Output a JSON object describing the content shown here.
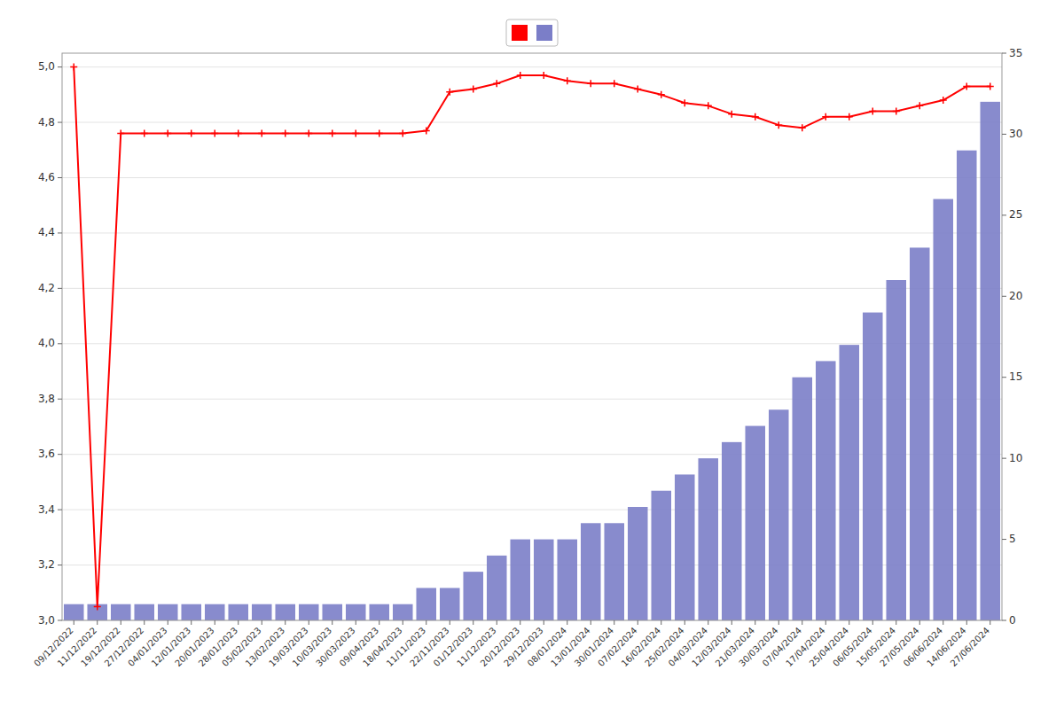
{
  "chart_data": {
    "type": "bar",
    "categories": [
      "09/12/2022",
      "11/12/2022",
      "19/12/2022",
      "27/12/2022",
      "04/01/2023",
      "12/01/2023",
      "20/01/2023",
      "28/01/2023",
      "05/02/2023",
      "13/02/2023",
      "19/03/2023",
      "10/03/2023",
      "30/03/2023",
      "09/04/2023",
      "18/04/2023",
      "11/11/2023",
      "22/11/2023",
      "01/12/2023",
      "11/12/2023",
      "20/12/2023",
      "29/12/2023",
      "08/01/2024",
      "13/01/2024",
      "30/01/2024",
      "07/02/2024",
      "16/02/2024",
      "25/02/2024",
      "04/03/2024",
      "12/03/2024",
      "21/03/2024",
      "30/03/2024",
      "07/04/2024",
      "17/04/2024",
      "25/04/2024",
      "06/05/2024",
      "15/05/2024",
      "27/05/2024",
      "06/06/2024",
      "14/06/2024",
      "27/06/2024"
    ],
    "series": [
      {
        "type": "line",
        "color": "#ff0000",
        "marker": "plus",
        "axis": "y",
        "values": [
          5.0,
          3.05,
          4.76,
          4.76,
          4.76,
          4.76,
          4.76,
          4.76,
          4.76,
          4.76,
          4.76,
          4.76,
          4.76,
          4.76,
          4.76,
          4.77,
          4.91,
          4.92,
          4.94,
          4.97,
          4.97,
          4.95,
          4.94,
          4.94,
          4.92,
          4.9,
          4.87,
          4.86,
          4.83,
          4.82,
          4.79,
          4.78,
          4.82,
          4.82,
          4.84,
          4.84,
          4.86,
          4.88,
          4.93,
          4.93
        ]
      },
      {
        "type": "bar",
        "color": "#7b7ec8",
        "axis": "y2",
        "values": [
          1,
          1,
          1,
          1,
          1,
          1,
          1,
          1,
          1,
          1,
          1,
          1,
          1,
          1,
          1,
          2,
          2,
          3,
          4,
          5,
          5,
          5,
          6,
          6,
          7,
          8,
          9,
          10,
          11,
          12,
          13,
          15,
          16,
          17,
          19,
          21,
          23,
          26,
          29,
          32
        ]
      }
    ],
    "ylim": [
      3.0,
      5.05
    ],
    "yticks": [
      {
        "value": 3.0,
        "label": "3,0"
      },
      {
        "value": 3.2,
        "label": "3,2"
      },
      {
        "value": 3.4,
        "label": "3,4"
      },
      {
        "value": 3.6,
        "label": "3,6"
      },
      {
        "value": 3.8,
        "label": "3,8"
      },
      {
        "value": 4.0,
        "label": "4,0"
      },
      {
        "value": 4.2,
        "label": "4,2"
      },
      {
        "value": 4.4,
        "label": "4,4"
      },
      {
        "value": 4.6,
        "label": "4,6"
      },
      {
        "value": 4.8,
        "label": "4,8"
      },
      {
        "value": 5.0,
        "label": "5,0"
      }
    ],
    "y2lim": [
      0,
      35
    ],
    "y2ticks": [
      0,
      5,
      10,
      15,
      20,
      25,
      30,
      35
    ],
    "grid": true,
    "legend": "upper center"
  }
}
